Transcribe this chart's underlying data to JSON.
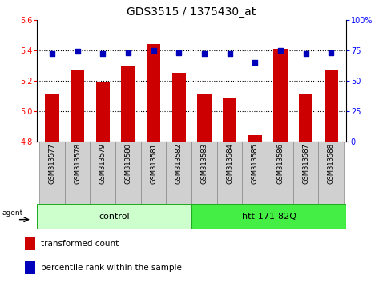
{
  "title": "GDS3515 / 1375430_at",
  "samples": [
    "GSM313577",
    "GSM313578",
    "GSM313579",
    "GSM313580",
    "GSM313581",
    "GSM313582",
    "GSM313583",
    "GSM313584",
    "GSM313585",
    "GSM313586",
    "GSM313587",
    "GSM313588"
  ],
  "red_values": [
    5.11,
    5.27,
    5.19,
    5.3,
    5.44,
    5.25,
    5.11,
    5.09,
    4.84,
    5.41,
    5.11,
    5.27
  ],
  "blue_values": [
    72,
    74,
    72,
    73,
    75,
    73,
    72,
    72,
    65,
    75,
    72,
    73
  ],
  "ylim_left": [
    4.8,
    5.6
  ],
  "ylim_right": [
    0,
    100
  ],
  "yticks_left": [
    4.8,
    5.0,
    5.2,
    5.4,
    5.6
  ],
  "yticks_right": [
    0,
    25,
    50,
    75,
    100
  ],
  "ytick_labels_right": [
    "0",
    "25",
    "50",
    "75",
    "100%"
  ],
  "grid_lines": [
    5.0,
    5.2,
    5.4
  ],
  "bar_color": "#cc0000",
  "dot_color": "#0000bb",
  "bar_width": 0.55,
  "control_color_light": "#ccffcc",
  "control_color_dark": "#44ee44",
  "group_edge_color": "#22aa22",
  "tick_box_color": "#d0d0d0",
  "tick_box_edge": "#888888",
  "legend_items": [
    {
      "color": "#cc0000",
      "label": "transformed count"
    },
    {
      "color": "#0000bb",
      "label": "percentile rank within the sample"
    }
  ],
  "title_fontsize": 10,
  "tick_fontsize": 7,
  "sample_fontsize": 6,
  "group_fontsize": 8
}
